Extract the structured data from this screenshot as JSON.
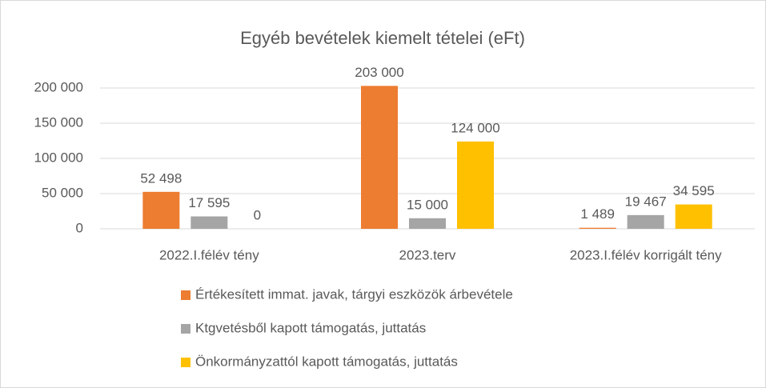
{
  "chart_data": {
    "type": "bar",
    "title": "Egyéb bevételek kiemelt tételei (eFt)",
    "categories": [
      "2022.I.félév tény",
      "2023.terv",
      "2023.I.félév korrigált tény"
    ],
    "series": [
      {
        "name": "Értékesített immat. javak, tárgyi eszközök árbevétele",
        "color": "#ed7d31",
        "values": [
          52498,
          203000,
          1489
        ],
        "value_labels": [
          "52 498",
          "203 000",
          "1 489"
        ]
      },
      {
        "name": "Ktgvetésből kapott támogatás, juttatás",
        "color": "#a5a5a5",
        "values": [
          17595,
          15000,
          19467
        ],
        "value_labels": [
          "17 595",
          "15 000",
          "19 467"
        ]
      },
      {
        "name": "Önkormányzattól kapott támogatás, juttatás",
        "color": "#ffc000",
        "values": [
          0,
          124000,
          34595
        ],
        "value_labels": [
          "0",
          "124 000",
          "34 595"
        ]
      }
    ],
    "ylim": [
      0,
      200000
    ],
    "yticks": [
      0,
      {
        "value": 50000,
        "label": "50 000"
      },
      {
        "value": 100000,
        "label": "100 000"
      },
      {
        "value": 150000,
        "label": "150 000"
      },
      {
        "value": 200000,
        "label": "200 000"
      }
    ],
    "grid": true,
    "legend": "bottom"
  }
}
